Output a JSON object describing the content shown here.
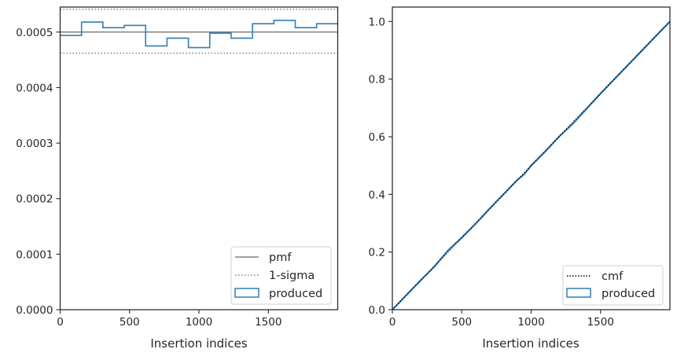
{
  "chart_data": [
    {
      "type": "line",
      "panel": "left",
      "xlabel": "Insertion indices",
      "ylabel": "",
      "xlim": [
        0,
        2000
      ],
      "ylim": [
        0,
        0.000545
      ],
      "xticks": [
        0,
        500,
        1000,
        1500
      ],
      "xtick_labels": [
        "0",
        "500",
        "1000",
        "1500"
      ],
      "yticks": [
        0,
        0.0001,
        0.0002,
        0.0003,
        0.0004,
        0.0005
      ],
      "ytick_labels": [
        "0.0000",
        "0.0001",
        "0.0002",
        "0.0003",
        "0.0004",
        "0.0005"
      ],
      "legend_position": "lower-right",
      "legend": [
        "pmf",
        "1-sigma",
        "produced"
      ],
      "pmf": {
        "name": "pmf",
        "value": 0.0005,
        "color": "#808080"
      },
      "sigma": {
        "name": "1-sigma",
        "lower": 0.000462,
        "upper": 0.000541,
        "color": "#808080"
      },
      "histogram": {
        "name": "produced",
        "color": "#2e7ebc",
        "bin_edges": [
          0,
          154,
          308,
          462,
          616,
          770,
          924,
          1078,
          1232,
          1386,
          1540,
          1694,
          1848,
          2000
        ],
        "values": [
          0.000494,
          0.000518,
          0.000508,
          0.000512,
          0.000475,
          0.000489,
          0.000472,
          0.000498,
          0.000489,
          0.000515,
          0.000521,
          0.000508,
          0.000515
        ]
      }
    },
    {
      "type": "line",
      "panel": "right",
      "xlabel": "Insertion indices",
      "ylabel": "",
      "xlim": [
        0,
        2000
      ],
      "ylim": [
        0,
        1.05
      ],
      "xticks": [
        0,
        500,
        1000,
        1500
      ],
      "xtick_labels": [
        "0",
        "500",
        "1000",
        "1500"
      ],
      "yticks": [
        0,
        0.2,
        0.4,
        0.6,
        0.8,
        1.0
      ],
      "ytick_labels": [
        "0.0",
        "0.2",
        "0.4",
        "0.6",
        "0.8",
        "1.0"
      ],
      "legend_position": "lower-right",
      "legend": [
        "cmf",
        "produced"
      ],
      "cmf": {
        "name": "cmf",
        "x": [
          0,
          2000
        ],
        "y": [
          0,
          1.0
        ],
        "color": "#000000"
      },
      "cumulative": {
        "name": "produced",
        "color": "#2e7ebc",
        "x": [
          0,
          100,
          200,
          300,
          400,
          500,
          600,
          700,
          800,
          900,
          950,
          1000,
          1100,
          1200,
          1300,
          1400,
          1500,
          1600,
          1700,
          1800,
          1900,
          2000
        ],
        "y": [
          0,
          0.05,
          0.1,
          0.148,
          0.205,
          0.25,
          0.298,
          0.35,
          0.4,
          0.45,
          0.47,
          0.5,
          0.548,
          0.6,
          0.645,
          0.697,
          0.75,
          0.8,
          0.85,
          0.9,
          0.95,
          1.0
        ]
      }
    }
  ]
}
